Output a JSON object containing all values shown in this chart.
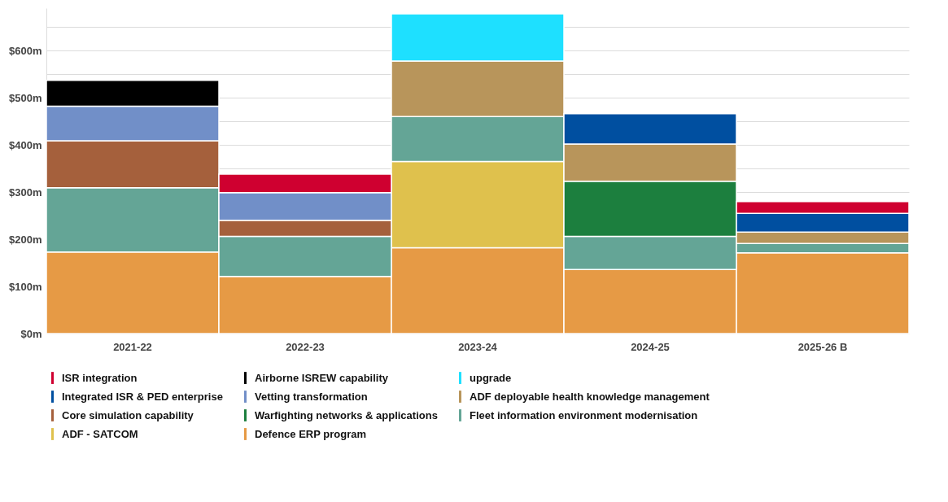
{
  "chart_data": {
    "type": "bar",
    "stacked": true,
    "categories": [
      "2021-22",
      "2022-23",
      "2023-24",
      "2024-25",
      "2025-26 B"
    ],
    "series": [
      {
        "name": "Defence ERP program",
        "color": "#e69a45",
        "values": [
          173,
          121,
          182,
          136,
          171
        ]
      },
      {
        "name": "ADF - SATCOM",
        "color": "#dfc14d",
        "values": [
          null,
          null,
          183,
          null,
          null
        ]
      },
      {
        "name": "Fleet information environment modernisation",
        "color": "#64a596",
        "values": [
          136,
          85,
          95,
          70,
          20
        ]
      },
      {
        "name": "Warfighting networks & applications",
        "color": "#1c7f3e",
        "values": [
          null,
          null,
          null,
          117,
          null
        ]
      },
      {
        "name": "Core simulation capability",
        "color": "#a5603c",
        "values": [
          100,
          34,
          null,
          null,
          null
        ]
      },
      {
        "name": "ADF deployable health knowledge management",
        "color": "#b8955b",
        "values": [
          null,
          null,
          118,
          79,
          24
        ]
      },
      {
        "name": "Vetting transformation",
        "color": "#718fc8",
        "values": [
          73,
          59,
          null,
          null,
          null
        ]
      },
      {
        "name": "Integrated ISR & PED enterprise",
        "color": "#004fa0",
        "values": [
          null,
          null,
          null,
          64,
          40
        ]
      },
      {
        "name": "upgrade",
        "color": "#1ee0ff",
        "values": [
          null,
          null,
          100,
          null,
          null
        ]
      },
      {
        "name": "Airborne ISREW capability",
        "color": "#000000",
        "values": [
          55,
          null,
          null,
          null,
          null
        ]
      },
      {
        "name": "ISR integration",
        "color": "#cf0030",
        "values": [
          null,
          39,
          null,
          null,
          25
        ]
      }
    ],
    "ylim": [
      0,
      690
    ],
    "yticks": [
      {
        "value": 0,
        "label": "$0m"
      },
      {
        "value": 100,
        "label": "$100m"
      },
      {
        "value": 200,
        "label": "$200m"
      },
      {
        "value": 300,
        "label": "$300m"
      },
      {
        "value": 350,
        "label": null
      },
      {
        "value": 400,
        "label": "$400m"
      },
      {
        "value": 450,
        "label": null
      },
      {
        "value": 500,
        "label": "$500m"
      },
      {
        "value": 550,
        "label": null
      },
      {
        "value": 600,
        "label": "$600m"
      },
      {
        "value": 650,
        "label": null
      }
    ],
    "grid": "y",
    "legend": "bottom"
  }
}
